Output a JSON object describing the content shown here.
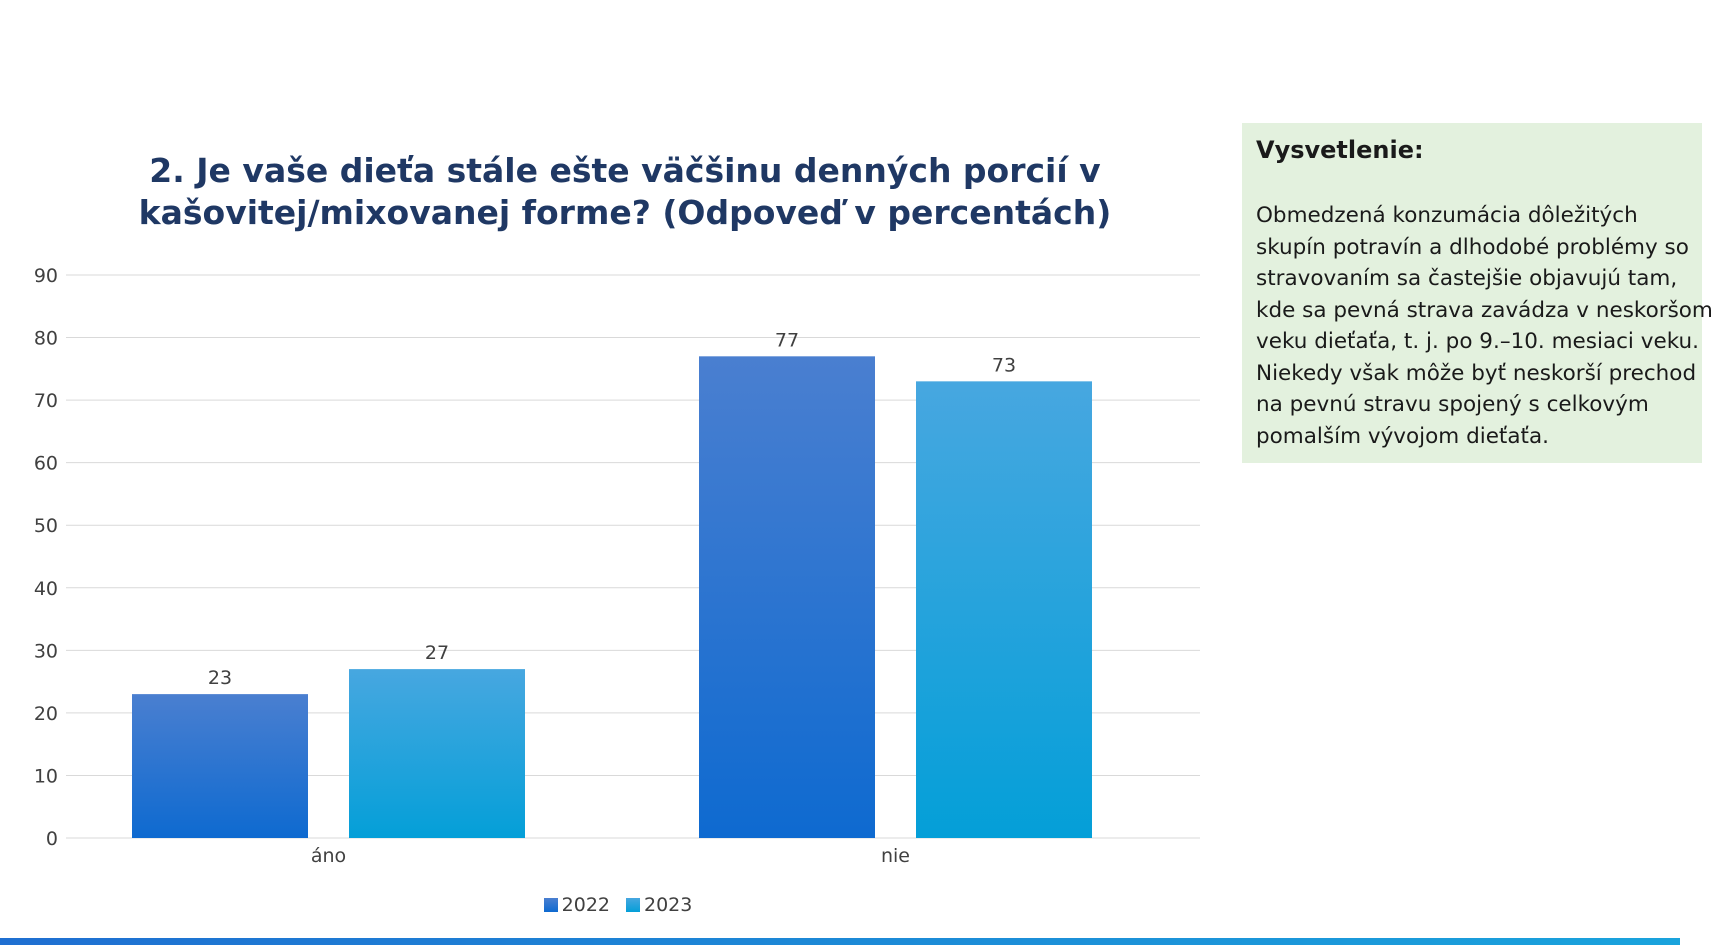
{
  "slide": {
    "title_lines": [
      "2. Je vaše dieťa stále ešte väčšinu denných porcií v",
      "kašovitej/mixovanej forme? (Odpoveď v percentách)"
    ],
    "explanation": {
      "heading": "Vysvetlenie:",
      "lines": [
        "Obmedzená konzumácia dôležitých",
        "skupín potravín a dlhodobé problémy so",
        "stravovaním sa častejšie objavujú tam,",
        "kde sa pevná strava zavádza v neskoršom",
        "veku dieťaťa, t. j. po 9.–10. mesiaci veku.",
        "Niekedy však môže byť neskorší prechod",
        "na pevnú stravu spojený s celkovým",
        "pomalším vývojom dieťaťa."
      ],
      "background_color": "#e3f1de"
    },
    "bottom_bar_color": "#1f6fd1"
  },
  "chart_data": {
    "type": "bar",
    "title": "2. Je vaše dieťa stále ešte väčšinu denných porcií v kašovitej/mixovanej forme? (Odpoveď v percentách)",
    "categories": [
      "áno",
      "nie"
    ],
    "series": [
      {
        "name": "2022",
        "values": [
          23,
          77
        ],
        "color_top": "#4a7fd0",
        "color_bottom": "#0e6ad0"
      },
      {
        "name": "2023",
        "values": [
          27,
          73
        ],
        "color_top": "#47a7e0",
        "color_bottom": "#049fd8"
      }
    ],
    "yticks": [
      "0",
      "10",
      "20",
      "30",
      "40",
      "50",
      "60",
      "70",
      "80",
      "90"
    ],
    "ylim": [
      0,
      90
    ],
    "grid": true,
    "legend_position": "bottom-center",
    "data_labels": true
  }
}
